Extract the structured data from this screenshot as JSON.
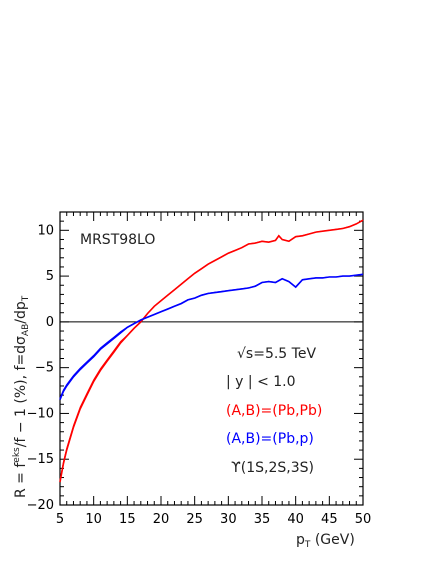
{
  "chart_data": {
    "type": "line",
    "annotation_model": "MRST98LO",
    "annotation_energy": "√s=5.5 TeV",
    "annotation_rapidity": "| y | < 1.0",
    "annotation_upsilon": "ϒ(1S,2S,3S)",
    "ylabel": "R = f^eks / f − 1 (%),  f = dσ_AB / dp_T",
    "ylabel_parts": {
      "r_eq": "R = f",
      "eks": "eks",
      "mid": "/f − 1 (%),  f=dσ",
      "ab": "AB",
      "dp": "/dp",
      "t": "T"
    },
    "xlabel_parts": {
      "p": "p",
      "t": "T",
      "unit": " (GeV)"
    },
    "xlim": [
      5,
      50
    ],
    "ylim": [
      -20,
      12
    ],
    "x_ticks": [
      5,
      10,
      15,
      20,
      25,
      30,
      35,
      40,
      45,
      50
    ],
    "y_ticks": [
      -20,
      -15,
      -10,
      -5,
      0,
      5,
      10
    ],
    "x_tick_labels": [
      "5",
      "10",
      "15",
      "20",
      "25",
      "30",
      "35",
      "40",
      "45",
      "50"
    ],
    "y_tick_labels": [
      "−20",
      "−15",
      "−10",
      "−5",
      "0",
      "5",
      "10"
    ],
    "zero_line": true,
    "series": [
      {
        "name": "(A,B)=(Pb,Pb)",
        "color": "#ff0000",
        "x": [
          5,
          5.5,
          6,
          7,
          8,
          9,
          10,
          11,
          12,
          13,
          14,
          15,
          16,
          17,
          18,
          19,
          20,
          21,
          22,
          23,
          24,
          25,
          26,
          27,
          28,
          29,
          30,
          31,
          32,
          33,
          34,
          35,
          36,
          37,
          37.5,
          38,
          39,
          40,
          41,
          42,
          43,
          44,
          45,
          46,
          47,
          48,
          49,
          50
        ],
        "values": [
          -17.5,
          -15.5,
          -14.0,
          -11.5,
          -9.5,
          -8.0,
          -6.5,
          -5.3,
          -4.3,
          -3.3,
          -2.3,
          -1.5,
          -0.7,
          0.0,
          0.9,
          1.7,
          2.3,
          2.9,
          3.5,
          4.1,
          4.7,
          5.3,
          5.8,
          6.3,
          6.7,
          7.1,
          7.5,
          7.8,
          8.1,
          8.5,
          8.6,
          8.8,
          8.7,
          8.9,
          9.4,
          9.0,
          8.8,
          9.3,
          9.4,
          9.6,
          9.8,
          9.9,
          10.0,
          10.1,
          10.2,
          10.4,
          10.7,
          11.1
        ]
      },
      {
        "name": "(A,B)=(Pb,p)",
        "color": "#0000ff",
        "x": [
          5,
          5.5,
          6,
          7,
          8,
          9,
          10,
          11,
          12,
          13,
          14,
          15,
          16,
          17,
          18,
          19,
          20,
          21,
          22,
          23,
          24,
          25,
          26,
          27,
          28,
          29,
          30,
          31,
          32,
          33,
          34,
          35,
          36,
          37,
          38,
          39,
          40,
          41,
          42,
          43,
          44,
          45,
          46,
          47,
          48,
          49,
          50
        ],
        "values": [
          -8.5,
          -7.6,
          -7.0,
          -6.0,
          -5.2,
          -4.5,
          -3.8,
          -3.0,
          -2.4,
          -1.8,
          -1.2,
          -0.6,
          -0.2,
          0.2,
          0.5,
          0.8,
          1.1,
          1.4,
          1.7,
          2.0,
          2.4,
          2.6,
          2.9,
          3.1,
          3.2,
          3.3,
          3.4,
          3.5,
          3.6,
          3.7,
          3.9,
          4.3,
          4.4,
          4.3,
          4.7,
          4.4,
          3.8,
          4.6,
          4.7,
          4.8,
          4.8,
          4.9,
          4.9,
          5.0,
          5.0,
          5.1,
          5.2
        ]
      }
    ]
  }
}
